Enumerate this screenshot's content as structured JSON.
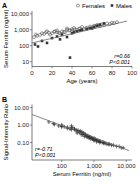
{
  "chart_data": [
    {
      "type": "scatter",
      "title": "A",
      "xlabel": "Age (years)",
      "ylabel": "Serum Ferritin (ng/ml)",
      "xlim": [
        0,
        100
      ],
      "ylim": [
        5,
        15000
      ],
      "xticks": [
        0,
        20,
        40,
        60,
        80,
        100
      ],
      "yticks": [
        10,
        100,
        {
          "value": 1000,
          "label": "1,000"
        },
        {
          "value": 10000,
          "label": "10,000"
        }
      ],
      "log": "y",
      "legend": "upper right",
      "annotation": "r=0.66\nP<0.001",
      "series": [
        {
          "name": "Females",
          "color": "#555555",
          "marker": "open-circle",
          "x": [
            2,
            4,
            5,
            8,
            10,
            12,
            14,
            15,
            17,
            18,
            20,
            22,
            23,
            25,
            25,
            27,
            28,
            30,
            32,
            33,
            35,
            35,
            37,
            38,
            40,
            40,
            42,
            43,
            45,
            47,
            48,
            50,
            52,
            54,
            55,
            58,
            60,
            62,
            63,
            65,
            67,
            68,
            70,
            72,
            75,
            78,
            80,
            82,
            85
          ],
          "values": [
            350,
            500,
            420,
            480,
            600,
            550,
            700,
            800,
            650,
            500,
            600,
            750,
            800,
            700,
            900,
            650,
            600,
            800,
            750,
            700,
            1000,
            1200,
            900,
            950,
            1100,
            850,
            1300,
            1050,
            1000,
            1150,
            1200,
            1500,
            1100,
            1250,
            1300,
            1600,
            1400,
            1800,
            1600,
            2000,
            1900,
            1700,
            2200,
            2000,
            2500,
            2300,
            2800,
            2600,
            3000
          ]
        },
        {
          "name": "Males",
          "color": "#333333",
          "marker": "square",
          "x": [
            3,
            6,
            10,
            15,
            20,
            25,
            28,
            30,
            35,
            38,
            40,
            42,
            45,
            48,
            50,
            55,
            58,
            60,
            62,
            65,
            68,
            72
          ],
          "values": [
            120,
            90,
            200,
            150,
            300,
            380,
            250,
            500,
            350,
            18,
            600,
            700,
            800,
            900,
            1000,
            1100,
            1300,
            1200,
            1500,
            1800,
            2100,
            2500
          ]
        },
        {
          "type": "line",
          "color": "#666666",
          "x": [
            0,
            95
          ],
          "values": [
            150,
            3500
          ]
        }
      ]
    },
    {
      "type": "scatter",
      "title": "B",
      "xlabel": "Serum Ferritin (ng/ml)",
      "ylabel": "Signal-Intensity Ratio",
      "xlim": [
        12,
        15000
      ],
      "ylim": [
        0.01,
        15
      ],
      "xticks": [
        100,
        {
          "value": 1000,
          "label": "1,000"
        },
        {
          "value": 10000,
          "label": "10,000"
        }
      ],
      "yticks": [
        {
          "value": 0.1,
          "label": "0.10"
        },
        {
          "value": 1.0,
          "label": "1.00"
        },
        {
          "value": 10.0,
          "label": "10.00"
        }
      ],
      "log": true,
      "annotation": "r=-0.71\nP<0.001",
      "series": [
        {
          "color": "#333333",
          "marker": "plus",
          "x": [
            40,
            55,
            60,
            80,
            100,
            100,
            120,
            150,
            180,
            200,
            200,
            220,
            250,
            280,
            300,
            320,
            350,
            380,
            400,
            420,
            450,
            480,
            500,
            550,
            600,
            650,
            700,
            750,
            800,
            850,
            900,
            950,
            1000,
            1000,
            1100,
            1200,
            1300,
            1400,
            1500,
            1600,
            1800,
            2000,
            2200,
            2500,
            2800,
            3000,
            3500,
            4000,
            5000,
            6000,
            7000,
            8000,
            300,
            400,
            500,
            600,
            700,
            800,
            1000,
            1200,
            1500,
            2000,
            100,
            150,
            200,
            250,
            350,
            450,
            550,
            650,
            750
          ],
          "values": [
            1.5,
            1.2,
            1.1,
            0.9,
            1.0,
            0.85,
            0.8,
            0.75,
            0.6,
            0.9,
            0.55,
            0.7,
            0.6,
            0.5,
            0.45,
            0.5,
            0.4,
            0.45,
            0.35,
            0.4,
            0.3,
            0.35,
            0.3,
            0.28,
            0.25,
            0.22,
            0.22,
            0.2,
            0.2,
            0.18,
            0.17,
            0.16,
            0.18,
            0.14,
            0.15,
            0.14,
            0.13,
            0.12,
            0.12,
            0.11,
            0.1,
            0.1,
            0.09,
            0.08,
            0.08,
            0.08,
            0.07,
            0.07,
            0.06,
            0.06,
            0.05,
            0.05,
            0.35,
            0.28,
            0.22,
            0.2,
            0.18,
            0.16,
            0.13,
            0.11,
            0.1,
            0.09,
            0.8,
            0.65,
            0.7,
            0.55,
            0.4,
            0.32,
            0.28,
            0.24,
            0.2
          ]
        },
        {
          "type": "line",
          "color": "#666666",
          "x": [
            12,
            12000
          ],
          "values": [
            4.0,
            0.035
          ]
        }
      ]
    }
  ]
}
